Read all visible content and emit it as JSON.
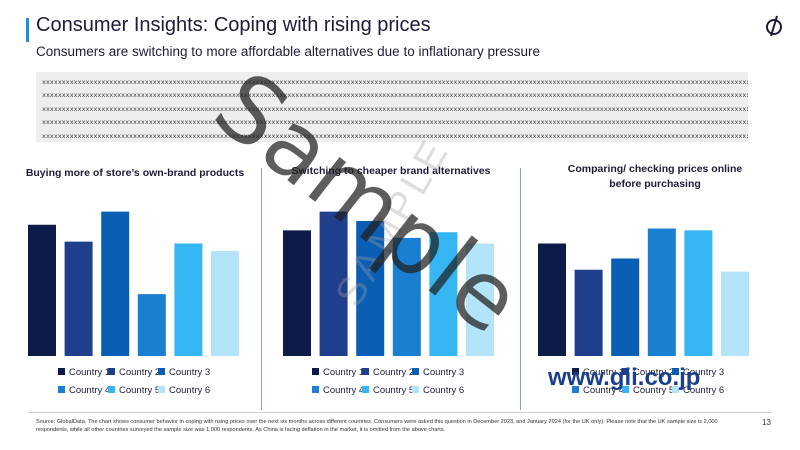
{
  "header": {
    "title": "Consumer Insights: Coping with rising prices",
    "subtitle": "Consumers are switching to more affordable alternatives due to inflationary pressure"
  },
  "textbox": {
    "lines": [
      "xxxxxxxxxxxxxxxxxxxxxxxxxxxxxxxxxxxxxxxxxxxxxxxxxxxxxxxxxxxxxxxxxxxxxxxxxxxxxxxxxxxxxxxxxxxxxxxxxxxxxxxxxxxxxxxxxxxxxxxxxxxxxxxxxxxxxxxxxxxxxxxxxxxxxxxxxxxxxxxxxxxxxxxxxxxxxxxxxxxxxxxxxxxxxxxxxxxxxxxxxxxxxxxxxxxxx",
      "xxxxxxxxxxxxxxxxxxxxxxxxxxxxxxxxxxxxxxxxxxxxxxxxxxxxxxxxxxxxxxxxxxxxxxxxxxxxxxxxxxxxxxxxxxxxxxxxxxxxxxxxxxxxxxxxxxxxxxxxxxxxxxxxxxxxxxxxxxxxxxxxxxxxxxxxxxxxxxxxxxxxxxxxxxxxxxxxxxxxxxxxxxxxxxxxxxxxxxxxxxxxxxxxxxxx",
      "xxxxxxxxxxxxxxxxxxxxxxxxxxxxxxxxxxxxxxxxxxxxxxxxxxxxxxxxxxxxxxxxxxxxxxxxxxxxxxxxxxxxxxxxxxxxxxxxxxxxxxxxxxxxxxxxxxxxxxxxxxxxxxxxxxxxxxxxxxxxxxxxxxxxxxxxxxxxxxxxxxxxxxxxxxxxxxxxxxxxxxxxxxxxxxxxxxxxxxxxxxxxxxxxxxxx",
      "xxxxxxxxxxxxxxxxxxxxxxxxxxxxxxxxxxxxxxxxxxxxxxxxxxxxxxxxxxxxxxxxxxxxxxxxxxxxxxxxxxxxxxxxxxxxxxxxxxxxxxxxxxxxxxxxxxxxxxxxxxxxxxxxxxxxxxxxxxxxxxxxxxxxxxxxxxxxxxxxxxxxxxxxxxxxxxxxxxxxxxxxxxxxxxxxxxxxxxxxxxxxxxxxxxxx",
      "xxxxxxxxxxxxxxxxxxxxxxxxxxxxxxxxxxxxxxxxxxxxxxxxxxxxxxxxxxxxxxxxxxxxxxxxxxxxxxxxxxxxxxxxxxxxxxxxxxxxxxxxxxxxxxxxxxxxxxxxxxxxxxxxxxxxxxxxxxxxxxxxxxxxxxxxxxxxxxxxxxxxxxxxxxxxxxxxxxxxxxxxxxxxxxxxxxxxxxxxxxxxxxxxxxxx"
    ]
  },
  "series_colors": [
    "#0d1b4b",
    "#1f3e8c",
    "#0a5fb4",
    "#1a7fd1",
    "#35b6f3",
    "#b4e4fa"
  ],
  "chart_data": [
    {
      "type": "bar",
      "title": "Buying more of store’s own-brand products",
      "categories": [
        "Country 1",
        "Country 2",
        "Country 3",
        "Country 4",
        "Country 5",
        "Country 6"
      ],
      "values": [
        70,
        61,
        77,
        33,
        60,
        56
      ],
      "ylim": [
        0,
        100
      ],
      "xlabel": "",
      "ylabel": "",
      "legend": "bottom",
      "legend_labels": [
        "Country 1",
        "Country 2",
        "Country 3",
        "Country 4",
        "Country 5",
        "Country 6"
      ]
    },
    {
      "type": "bar",
      "title": "Switching to cheaper brand alternatives",
      "categories": [
        "Country 1",
        "Country 2",
        "Country 3",
        "Country 4",
        "Country 5",
        "Country 6"
      ],
      "values": [
        67,
        77,
        72,
        63,
        66,
        60
      ],
      "ylim": [
        0,
        100
      ],
      "xlabel": "",
      "ylabel": "",
      "legend": "bottom",
      "legend_labels": [
        "Country 1",
        "Country 2",
        "Country 3",
        "Country 4",
        "Country 5",
        "Country 6"
      ]
    },
    {
      "type": "bar",
      "title": "Comparing/ checking prices online before purchasing",
      "categories": [
        "Country 1",
        "Country 2",
        "Country 3",
        "Country 4",
        "Country 5",
        "Country 6"
      ],
      "values": [
        60,
        46,
        52,
        68,
        67,
        45
      ],
      "ylim": [
        0,
        100
      ],
      "xlabel": "",
      "ylabel": "",
      "legend": "bottom",
      "legend_labels": [
        "Country 1",
        "Country 2",
        "Country 3",
        "Country 4",
        "Country 5",
        "Country 6"
      ]
    }
  ],
  "footer": {
    "source": "Source: GlobalData. The chart shows consumer behavior in coping with rising prices over the next six months across different countries. Consumers were asked this question in December 2023, and January 2024 (for the UK only). Please note that the UK sample size is 2,000 respondents, while all other countries surveyed the sample size was 1,000 respondents. As China is facing deflation in the market, it is omitted from the above charts.",
    "page_number": "13"
  },
  "watermarks": {
    "sample_text": "Sample",
    "sample_text_faint": "SAMPLE",
    "url": "www.gii.co.jp"
  }
}
